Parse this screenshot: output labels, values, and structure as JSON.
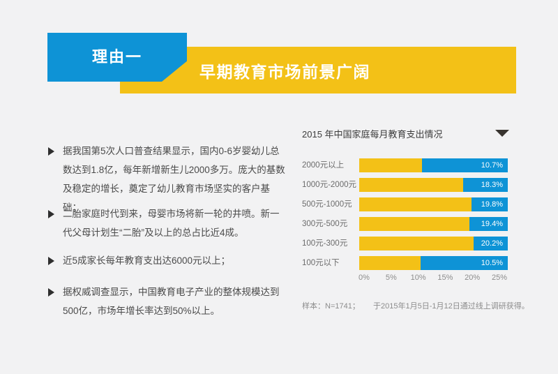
{
  "header": {
    "badge": "理由一",
    "title": "早期教育市场前景广阔"
  },
  "bullets": [
    "据我国第5次人口普查结果显示，国内0-6岁婴幼儿总数达到1.8亿，每年新增新生儿2000多万。庞大的基数及稳定的增长，奠定了幼儿教育市场坚实的客户基础；",
    "二胎家庭时代到来，母婴市场将新一轮的井喷。新一代父母计划生“二胎”及以上的总占比近4成。",
    "近5成家长每年教育支出达6000元以上；",
    "据权威调查显示，中国教育电子产业的整体规模达到500亿，市场年增长率达到50%以上。"
  ],
  "chart": {
    "title": "2015 年中国家庭每月教育支出情况",
    "footnote_sample": "样本：N=1741；",
    "footnote_method": "于2015年1月5日-1月12日通过线上调研获得。"
  },
  "chart_data": {
    "type": "bar",
    "orientation": "horizontal",
    "title": "2015 年中国家庭每月教育支出情况",
    "categories": [
      "2000元以上",
      "1000元-2000元",
      "500元-1000元",
      "300元-500元",
      "100元-300元",
      "100元以下"
    ],
    "values": [
      10.7,
      18.3,
      19.8,
      19.4,
      20.2,
      10.5
    ],
    "value_labels": [
      "10.7%",
      "18.3%",
      "19.8%",
      "19.4%",
      "20.2%",
      "10.5%"
    ],
    "x_ticks": [
      "0%",
      "5%",
      "10%",
      "15%",
      "20%",
      "25%"
    ],
    "xlim": [
      0,
      25
    ],
    "grid": false,
    "legend": "none",
    "bar_style": "value shown as yellow segment, blue segment fills remainder of fixed-width track with white value label right-aligned",
    "bar_colors": {
      "value_fill": "#f3c117",
      "remainder_fill": "#0e93d6"
    }
  },
  "icons": {
    "bullet": "triangle-right",
    "dropdown": "triangle-down"
  },
  "colors": {
    "accent_blue": "#0e93d6",
    "accent_yellow": "#f3c117",
    "background": "#f2f2f3",
    "body_text": "#4a4a4a",
    "muted_text": "#8c8c8c",
    "value_label_text": "#ffffff"
  }
}
